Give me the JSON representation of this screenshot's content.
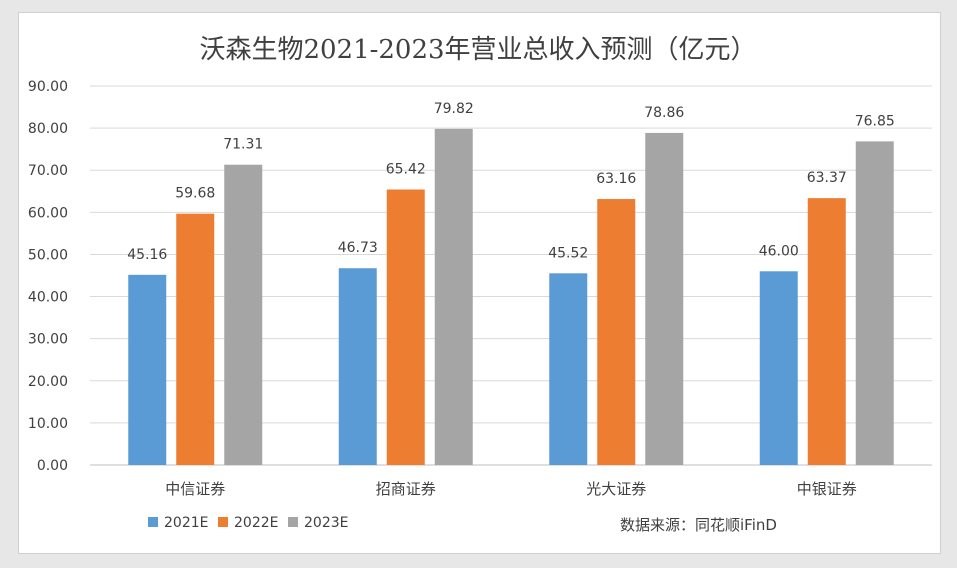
{
  "colors": {
    "series_2021": "#5b9bd5",
    "series_2022": "#ed7d31",
    "series_2023": "#a5a5a5",
    "grid": "#d9d9d9",
    "axis": "#bfbfbf"
  },
  "source_note": "数据来源：同花顺iFinD",
  "chart_data": {
    "type": "bar",
    "title": "沃森生物2021-2023年营业总收入预测（亿元）",
    "xlabel": "",
    "ylabel": "",
    "ylim": [
      0,
      90
    ],
    "yticks": [
      "0.00",
      "10.00",
      "20.00",
      "30.00",
      "40.00",
      "50.00",
      "60.00",
      "70.00",
      "80.00",
      "90.00"
    ],
    "grid": true,
    "legend_position": "bottom-left",
    "categories": [
      "中信证券",
      "招商证券",
      "光大证券",
      "中银证券"
    ],
    "series": [
      {
        "name": "2021E",
        "values": [
          45.16,
          46.73,
          45.52,
          46.0
        ],
        "labels": [
          "45.16",
          "46.73",
          "45.52",
          "46.00"
        ]
      },
      {
        "name": "2022E",
        "values": [
          59.68,
          65.42,
          63.16,
          63.37
        ],
        "labels": [
          "59.68",
          "65.42",
          "63.16",
          "63.37"
        ]
      },
      {
        "name": "2023E",
        "values": [
          71.31,
          79.82,
          78.86,
          76.85
        ],
        "labels": [
          "71.31",
          "79.82",
          "78.86",
          "76.85"
        ]
      }
    ]
  }
}
